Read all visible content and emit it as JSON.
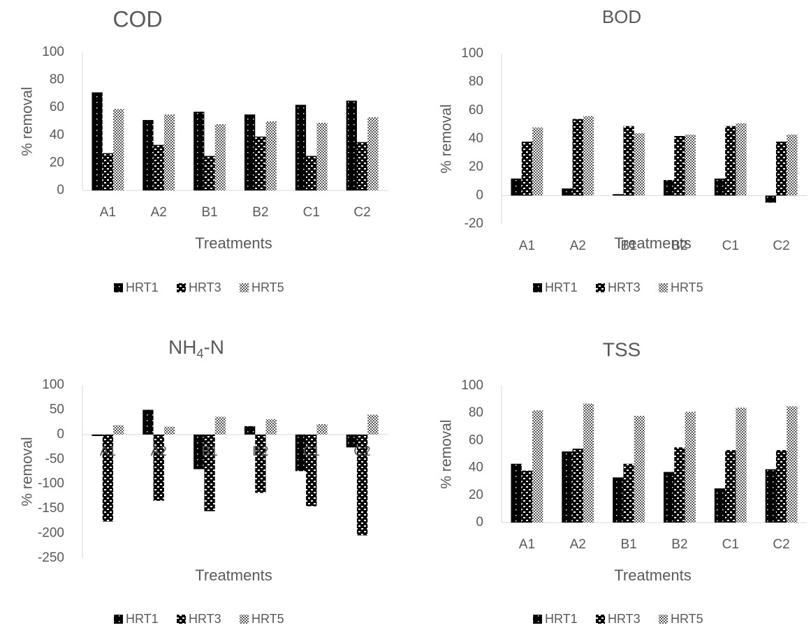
{
  "chart_data": [
    {
      "type": "bar",
      "title": "COD",
      "xlabel": "Treatments",
      "ylabel": "% removal",
      "categories": [
        "A1",
        "A2",
        "B1",
        "B2",
        "C1",
        "C2"
      ],
      "ylim": [
        0,
        100
      ],
      "yticks": [
        0,
        20,
        40,
        60,
        80,
        100
      ],
      "grid": false,
      "legend_position": "bottom",
      "series": [
        {
          "name": "HRT1",
          "values": [
            71,
            51,
            57,
            55,
            62,
            65
          ]
        },
        {
          "name": "HRT3",
          "values": [
            27,
            33,
            25,
            39,
            25,
            35
          ]
        },
        {
          "name": "HRT5",
          "values": [
            59,
            55,
            48,
            50,
            49,
            53
          ]
        }
      ]
    },
    {
      "type": "bar",
      "title": "BOD",
      "xlabel": "Treatments",
      "ylabel": "% removal",
      "categories": [
        "A1",
        "A2",
        "B1",
        "B2",
        "C1",
        "C2"
      ],
      "ylim": [
        -20,
        100
      ],
      "yticks": [
        -20,
        0,
        20,
        40,
        60,
        80,
        100
      ],
      "grid": false,
      "legend_position": "bottom",
      "series": [
        {
          "name": "HRT1",
          "values": [
            12,
            5,
            1,
            11,
            12,
            -5
          ]
        },
        {
          "name": "HRT3",
          "values": [
            38,
            54,
            49,
            42,
            49,
            38
          ]
        },
        {
          "name": "HRT5",
          "values": [
            48,
            56,
            44,
            43,
            51,
            43
          ]
        }
      ]
    },
    {
      "type": "bar",
      "title_main": "NH",
      "title_sub": "4",
      "title_rest": "-N",
      "xlabel": "Treatments",
      "ylabel": "% removal",
      "categories": [
        "A1",
        "A2",
        "B1",
        "B2",
        "C1",
        "C2"
      ],
      "ylim": [
        -250,
        100
      ],
      "yticks": [
        -250,
        -200,
        -150,
        -100,
        -50,
        0,
        50,
        100
      ],
      "grid": false,
      "legend_position": "bottom",
      "series": [
        {
          "name": "HRT1",
          "values": [
            -3,
            50,
            -70,
            17,
            -74,
            -26
          ]
        },
        {
          "name": "HRT3",
          "values": [
            -176,
            -134,
            -155,
            -118,
            -145,
            -204
          ]
        },
        {
          "name": "HRT5",
          "values": [
            19,
            16,
            36,
            31,
            21,
            40
          ]
        }
      ]
    },
    {
      "type": "bar",
      "title": "TSS",
      "xlabel": "Treatments",
      "ylabel": "% removal",
      "categories": [
        "A1",
        "A2",
        "B1",
        "B2",
        "C1",
        "C2"
      ],
      "ylim": [
        0,
        100
      ],
      "yticks": [
        0,
        20,
        40,
        60,
        80,
        100
      ],
      "grid": false,
      "legend_position": "bottom",
      "series": [
        {
          "name": "HRT1",
          "values": [
            43,
            52,
            33,
            37,
            25,
            39
          ]
        },
        {
          "name": "HRT3",
          "values": [
            38,
            54,
            43,
            55,
            53,
            53
          ]
        },
        {
          "name": "HRT5",
          "values": [
            82,
            87,
            78,
            81,
            84,
            85
          ]
        }
      ]
    }
  ]
}
